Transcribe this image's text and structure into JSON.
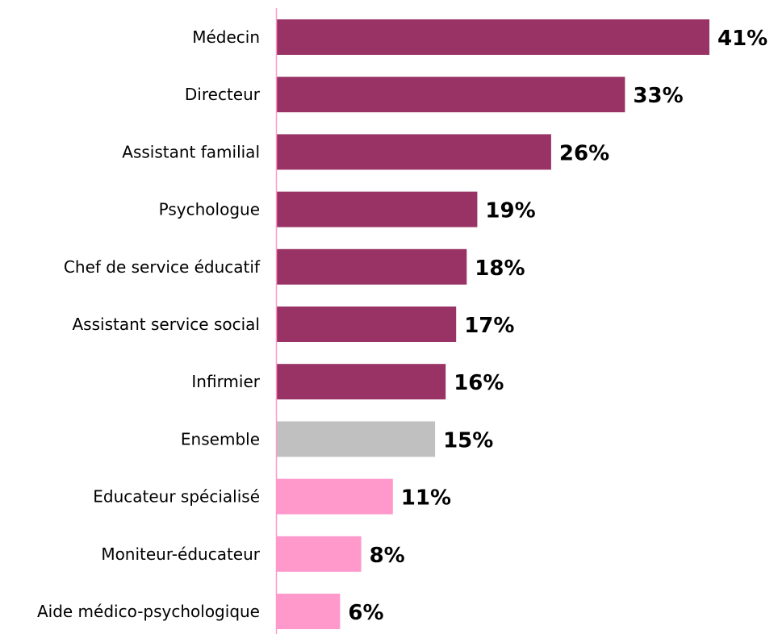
{
  "chart_data": {
    "type": "bar",
    "orientation": "horizontal",
    "categories": [
      "Médecin",
      "Directeur",
      "Assistant familial",
      "Psychologue",
      "Chef de service éducatif",
      "Assistant service social",
      "Infirmier",
      "Ensemble",
      "Educateur spécialisé",
      "Moniteur-éducateur",
      "Aide médico-psychologique"
    ],
    "values": [
      41,
      33,
      26,
      19,
      18,
      17,
      16,
      15,
      11,
      8,
      6
    ],
    "value_labels": [
      "41%",
      "33%",
      "26%",
      "19%",
      "18%",
      "17%",
      "16%",
      "15%",
      "11%",
      "8%",
      "6%"
    ],
    "unit": "%",
    "bar_colors": [
      "#993366",
      "#993366",
      "#993366",
      "#993366",
      "#993366",
      "#993366",
      "#993366",
      "#C0C0C0",
      "#FF99CC",
      "#FF99CC",
      "#FF99CC"
    ],
    "axis_color": "#FF99CC",
    "xlim": [
      0,
      41
    ],
    "grid": false,
    "legend": "none",
    "title": "",
    "xlabel": "",
    "ylabel": ""
  }
}
